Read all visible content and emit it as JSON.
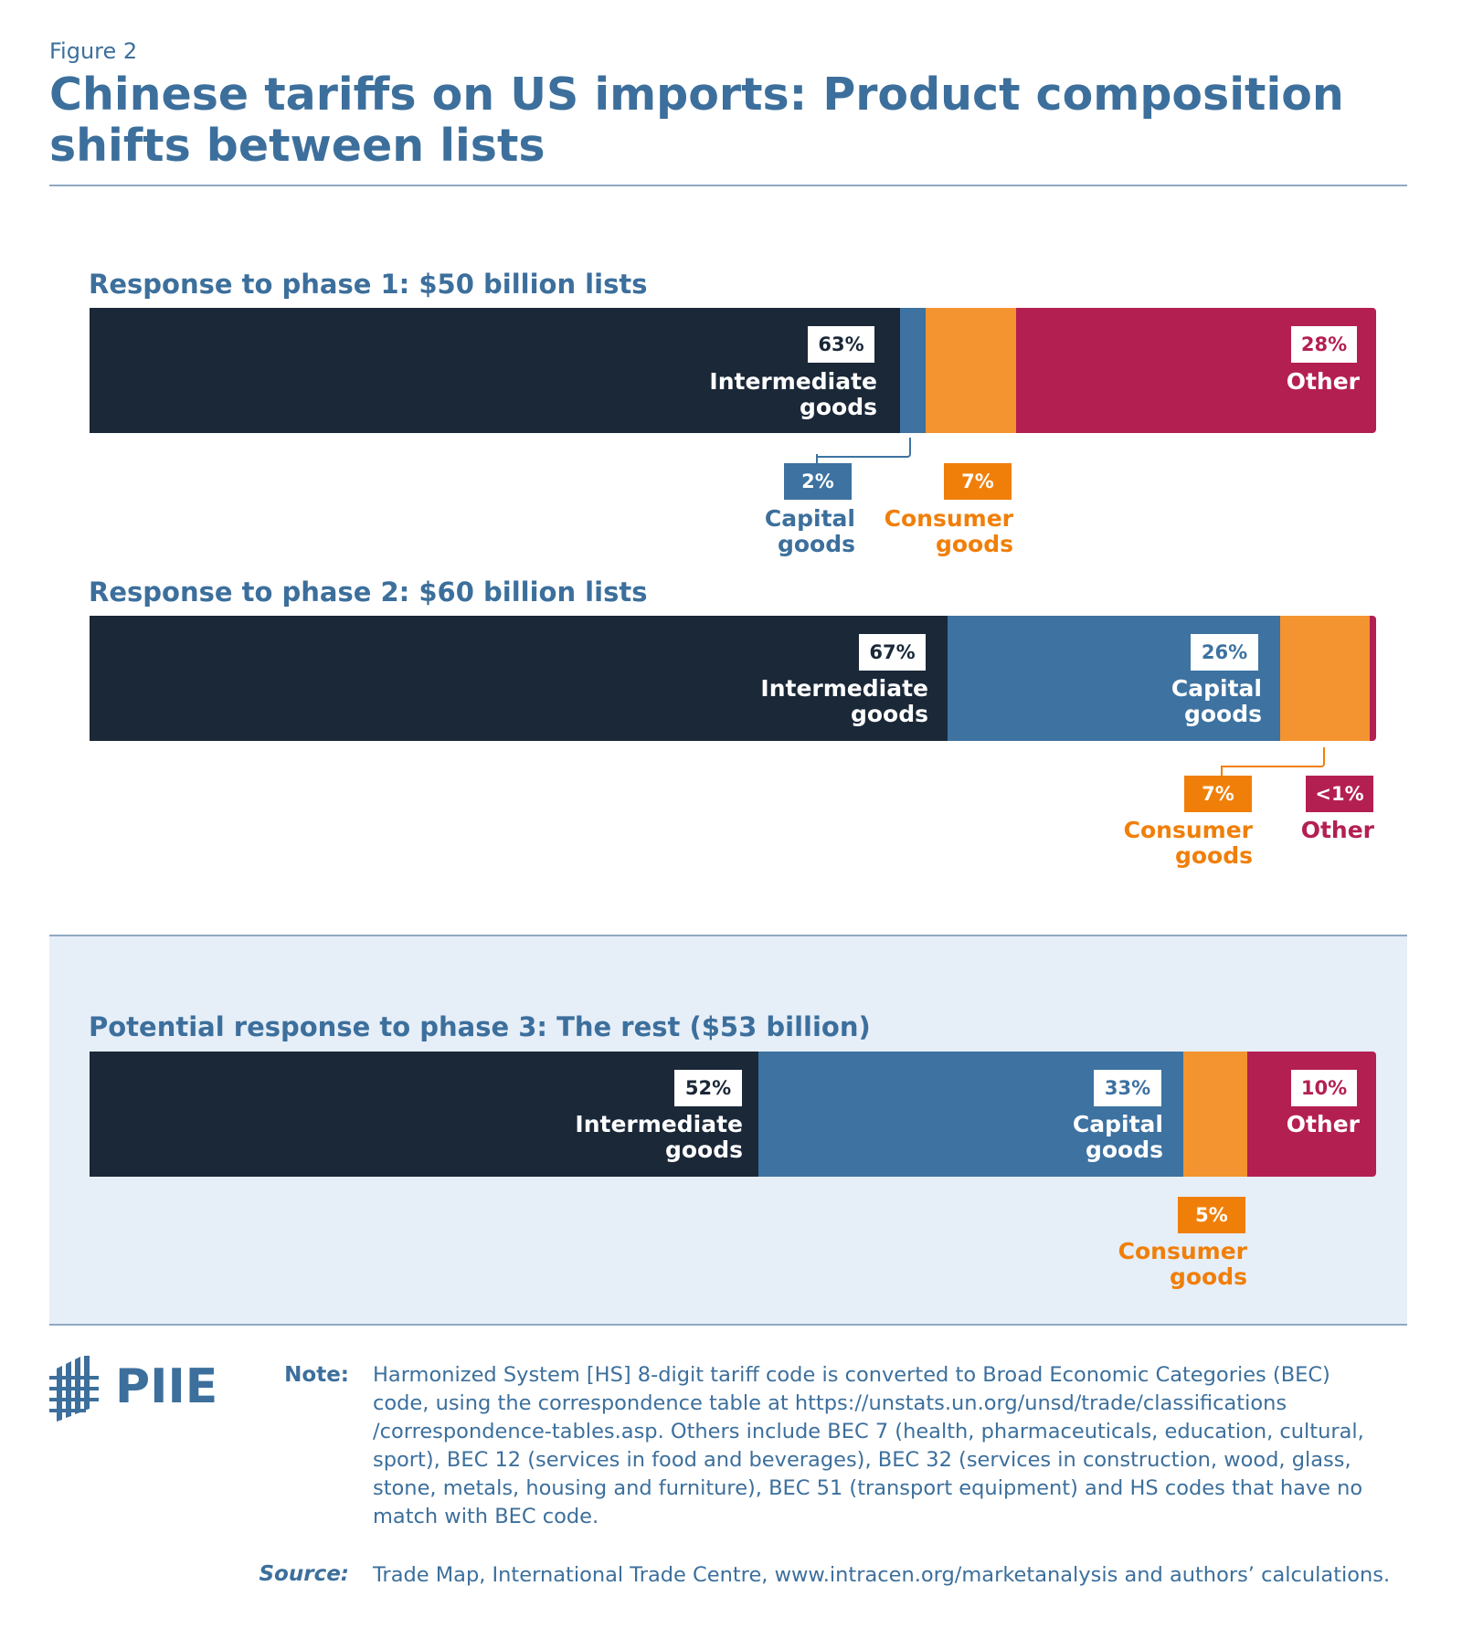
{
  "figure_label": "Figure 2",
  "title": "Chinese tariffs on US imports: Product composition shifts between lists",
  "colors": {
    "intermediate": "#1a2838",
    "capital": "#3d72a1",
    "consumer_bar": "#f39430",
    "consumer_badge": "#f07f09",
    "other": "#b41f51",
    "title": "#3c6f9c",
    "shade": "#e6eef8"
  },
  "chart_data": [
    {
      "type": "bar",
      "orientation": "horizontal-stacked-100",
      "title": "Response to phase 1: $50 billion lists",
      "series": [
        {
          "name": "Intermediate goods",
          "value": 63,
          "label": "63%"
        },
        {
          "name": "Capital goods",
          "value": 2,
          "label": "2%"
        },
        {
          "name": "Consumer goods",
          "value": 7,
          "label": "7%"
        },
        {
          "name": "Other",
          "value": 28,
          "label": "28%"
        }
      ]
    },
    {
      "type": "bar",
      "orientation": "horizontal-stacked-100",
      "title": "Response to phase 2: $60 billion lists",
      "series": [
        {
          "name": "Intermediate goods",
          "value": 67,
          "label": "67%"
        },
        {
          "name": "Capital goods",
          "value": 26,
          "label": "26%"
        },
        {
          "name": "Consumer goods",
          "value": 7,
          "label": "7%"
        },
        {
          "name": "Other",
          "value": 0.5,
          "label": "<1%"
        }
      ]
    },
    {
      "type": "bar",
      "orientation": "horizontal-stacked-100",
      "title": "Potential response to phase 3: The rest ($53 billion)",
      "series": [
        {
          "name": "Intermediate goods",
          "value": 52,
          "label": "52%"
        },
        {
          "name": "Capital goods",
          "value": 33,
          "label": "33%"
        },
        {
          "name": "Consumer goods",
          "value": 5,
          "label": "5%"
        },
        {
          "name": "Other",
          "value": 10,
          "label": "10%"
        }
      ]
    }
  ],
  "labels": {
    "intermediate": [
      "Intermediate",
      "goods"
    ],
    "capital": [
      "Capital",
      "goods"
    ],
    "consumer": [
      "Consumer",
      "goods"
    ],
    "other": "Other"
  },
  "note": {
    "heading": "Note:",
    "lines": [
      "Harmonized System [HS] 8-digit tariff code is converted to Broad Economic Categories (BEC)",
      "code, using the correspondence table at https://unstats.un.org/unsd/trade/classifications",
      "/correspondence-tables.asp. Others include BEC 7 (health, pharmaceuticals, education, cultural,",
      "sport), BEC 12 (services in food and beverages), BEC 32 (services in construction, wood, glass,",
      "stone, metals, housing and furniture), BEC 51 (transport equipment) and HS codes that have no",
      "match with BEC code."
    ]
  },
  "source": {
    "heading": "Source:",
    "text": "Trade Map, International Trade Centre, www.intracen.org/marketanalysis and authors’ calculations."
  },
  "logo": {
    "text": "PIIE"
  }
}
